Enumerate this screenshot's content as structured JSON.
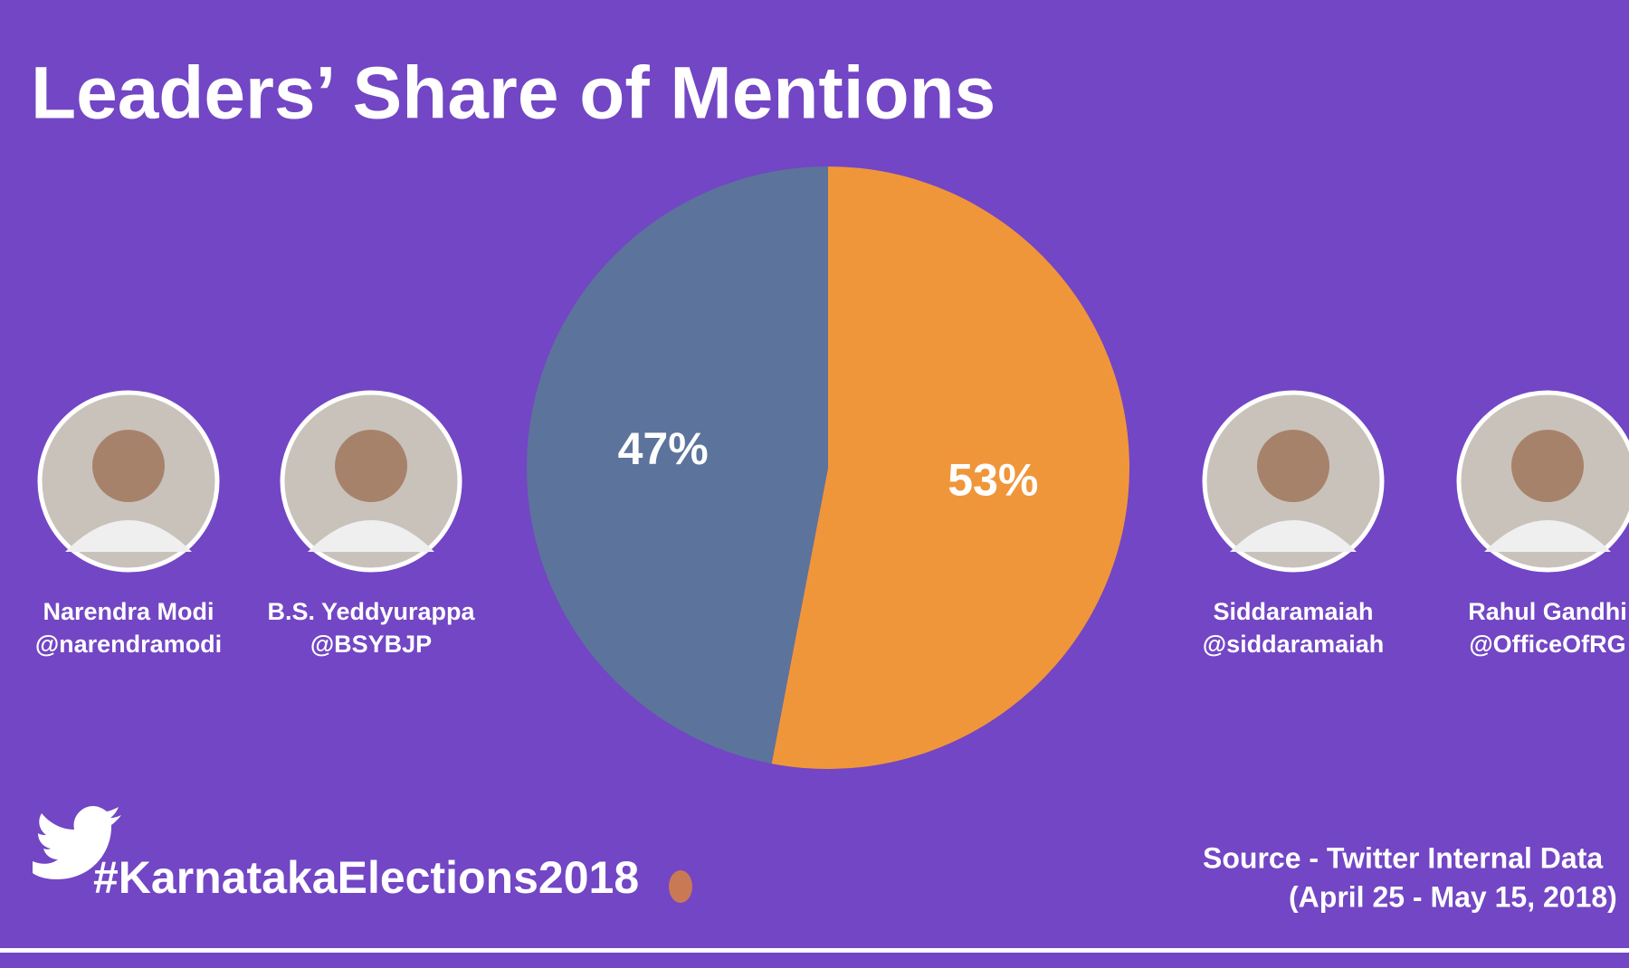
{
  "chart_data": {
    "type": "pie",
    "title": "Leaders’ Share of Mentions",
    "values": [
      53,
      47
    ],
    "value_labels": [
      "53%",
      "47%"
    ],
    "colors": [
      "#f0963a",
      "#5c739c"
    ]
  },
  "leaders": [
    {
      "name": "Narendra Modi",
      "handle": "@narendramodi"
    },
    {
      "name": "B.S. Yeddyurappa",
      "handle": "@BSYBJP"
    },
    {
      "name": "Siddaramaiah",
      "handle": "@siddaramaiah"
    },
    {
      "name": "Rahul Gandhi",
      "handle": "@OfficeOfRG"
    }
  ],
  "hashtag": "#KarnatakaElections2018",
  "source": [
    "Source - Twitter Internal Data",
    "(April 25 - May 15, 2018)"
  ]
}
